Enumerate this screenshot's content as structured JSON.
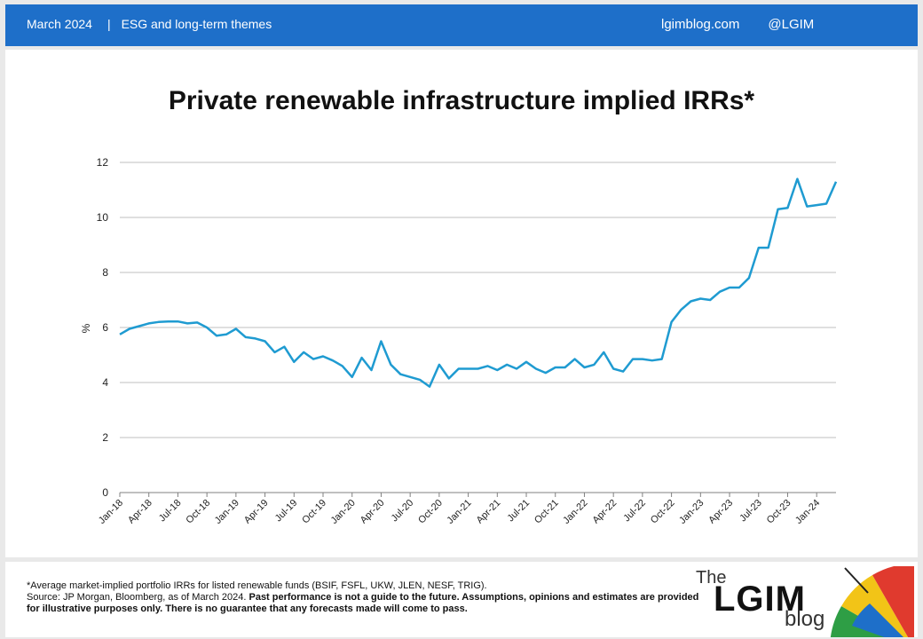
{
  "header": {
    "date": "March 2024",
    "separator": "|",
    "theme": "ESG and long-term themes",
    "site": "lgimblog.com",
    "handle": "@LGIM"
  },
  "footer": {
    "note": "*Average market-implied portfolio IRRs for listed renewable funds (BSIF, FSFL, UKW, JLEN, NESF, TRIG).",
    "source": "Source: JP Morgan, Bloomberg, as of March 2024. ",
    "disclaimer": "Past performance is not a guide to the future. Assumptions, opinions and estimates are provided for illustrative purposes only.  There is no guarantee that any forecasts made will come to pass."
  },
  "logo": {
    "the": "The",
    "name": "LGIM",
    "blog": "blog"
  },
  "colors": {
    "line": "#1f9bd1",
    "header": "#1e6fc9",
    "grid": "#bfbfbf"
  },
  "chart_data": {
    "type": "line",
    "title": "Private renewable infrastructure implied IRRs*",
    "ylabel": "%",
    "ylim": [
      0,
      12
    ],
    "yticks": [
      "0",
      "2",
      "4",
      "6",
      "8",
      "10",
      "12"
    ],
    "grid": true,
    "x_tick_labels": [
      "Jan-18",
      "Apr-18",
      "Jul-18",
      "Oct-18",
      "Jan-19",
      "Apr-19",
      "Jul-19",
      "Oct-19",
      "Jan-20",
      "Apr-20",
      "Jul-20",
      "Oct-20",
      "Jan-21",
      "Apr-21",
      "Jul-21",
      "Oct-21",
      "Jan-22",
      "Apr-22",
      "Jul-22",
      "Oct-22",
      "Jan-23",
      "Apr-23",
      "Jul-23",
      "Oct-23",
      "Jan-24"
    ],
    "x": [
      "Jan-18",
      "Feb-18",
      "Mar-18",
      "Apr-18",
      "May-18",
      "Jun-18",
      "Jul-18",
      "Aug-18",
      "Sep-18",
      "Oct-18",
      "Nov-18",
      "Dec-18",
      "Jan-19",
      "Feb-19",
      "Mar-19",
      "Apr-19",
      "May-19",
      "Jun-19",
      "Jul-19",
      "Aug-19",
      "Sep-19",
      "Oct-19",
      "Nov-19",
      "Dec-19",
      "Jan-20",
      "Feb-20",
      "Mar-20",
      "Apr-20",
      "May-20",
      "Jun-20",
      "Jul-20",
      "Aug-20",
      "Sep-20",
      "Oct-20",
      "Nov-20",
      "Dec-20",
      "Jan-21",
      "Feb-21",
      "Mar-21",
      "Apr-21",
      "May-21",
      "Jun-21",
      "Jul-21",
      "Aug-21",
      "Sep-21",
      "Oct-21",
      "Nov-21",
      "Dec-21",
      "Jan-22",
      "Feb-22",
      "Mar-22",
      "Apr-22",
      "May-22",
      "Jun-22",
      "Jul-22",
      "Aug-22",
      "Sep-22",
      "Oct-22",
      "Nov-22",
      "Dec-22",
      "Jan-23",
      "Feb-23",
      "Mar-23",
      "Apr-23",
      "May-23",
      "Jun-23",
      "Jul-23",
      "Aug-23",
      "Sep-23",
      "Oct-23",
      "Nov-23",
      "Dec-23",
      "Jan-24",
      "Feb-24",
      "Mar-24"
    ],
    "series": [
      {
        "values": [
          5.75,
          5.95,
          6.05,
          6.15,
          6.2,
          6.22,
          6.22,
          6.15,
          6.18,
          6.0,
          5.7,
          5.75,
          5.95,
          5.65,
          5.6,
          5.5,
          5.1,
          5.3,
          4.75,
          5.1,
          4.85,
          4.95,
          4.8,
          4.6,
          4.2,
          4.9,
          4.45,
          5.5,
          4.65,
          4.3,
          4.2,
          4.1,
          3.85,
          4.65,
          4.15,
          4.5,
          4.5,
          4.5,
          4.6,
          4.45,
          4.65,
          4.5,
          4.75,
          4.5,
          4.35,
          4.55,
          4.55,
          4.85,
          4.55,
          4.65,
          5.1,
          4.5,
          4.4,
          4.85,
          4.85,
          4.8,
          4.85,
          6.2,
          6.65,
          6.95,
          7.05,
          7.0,
          7.3,
          7.45,
          7.45,
          7.8,
          8.9,
          8.9,
          10.3,
          10.35,
          11.4,
          10.4,
          10.45,
          10.5,
          11.3
        ]
      }
    ]
  }
}
